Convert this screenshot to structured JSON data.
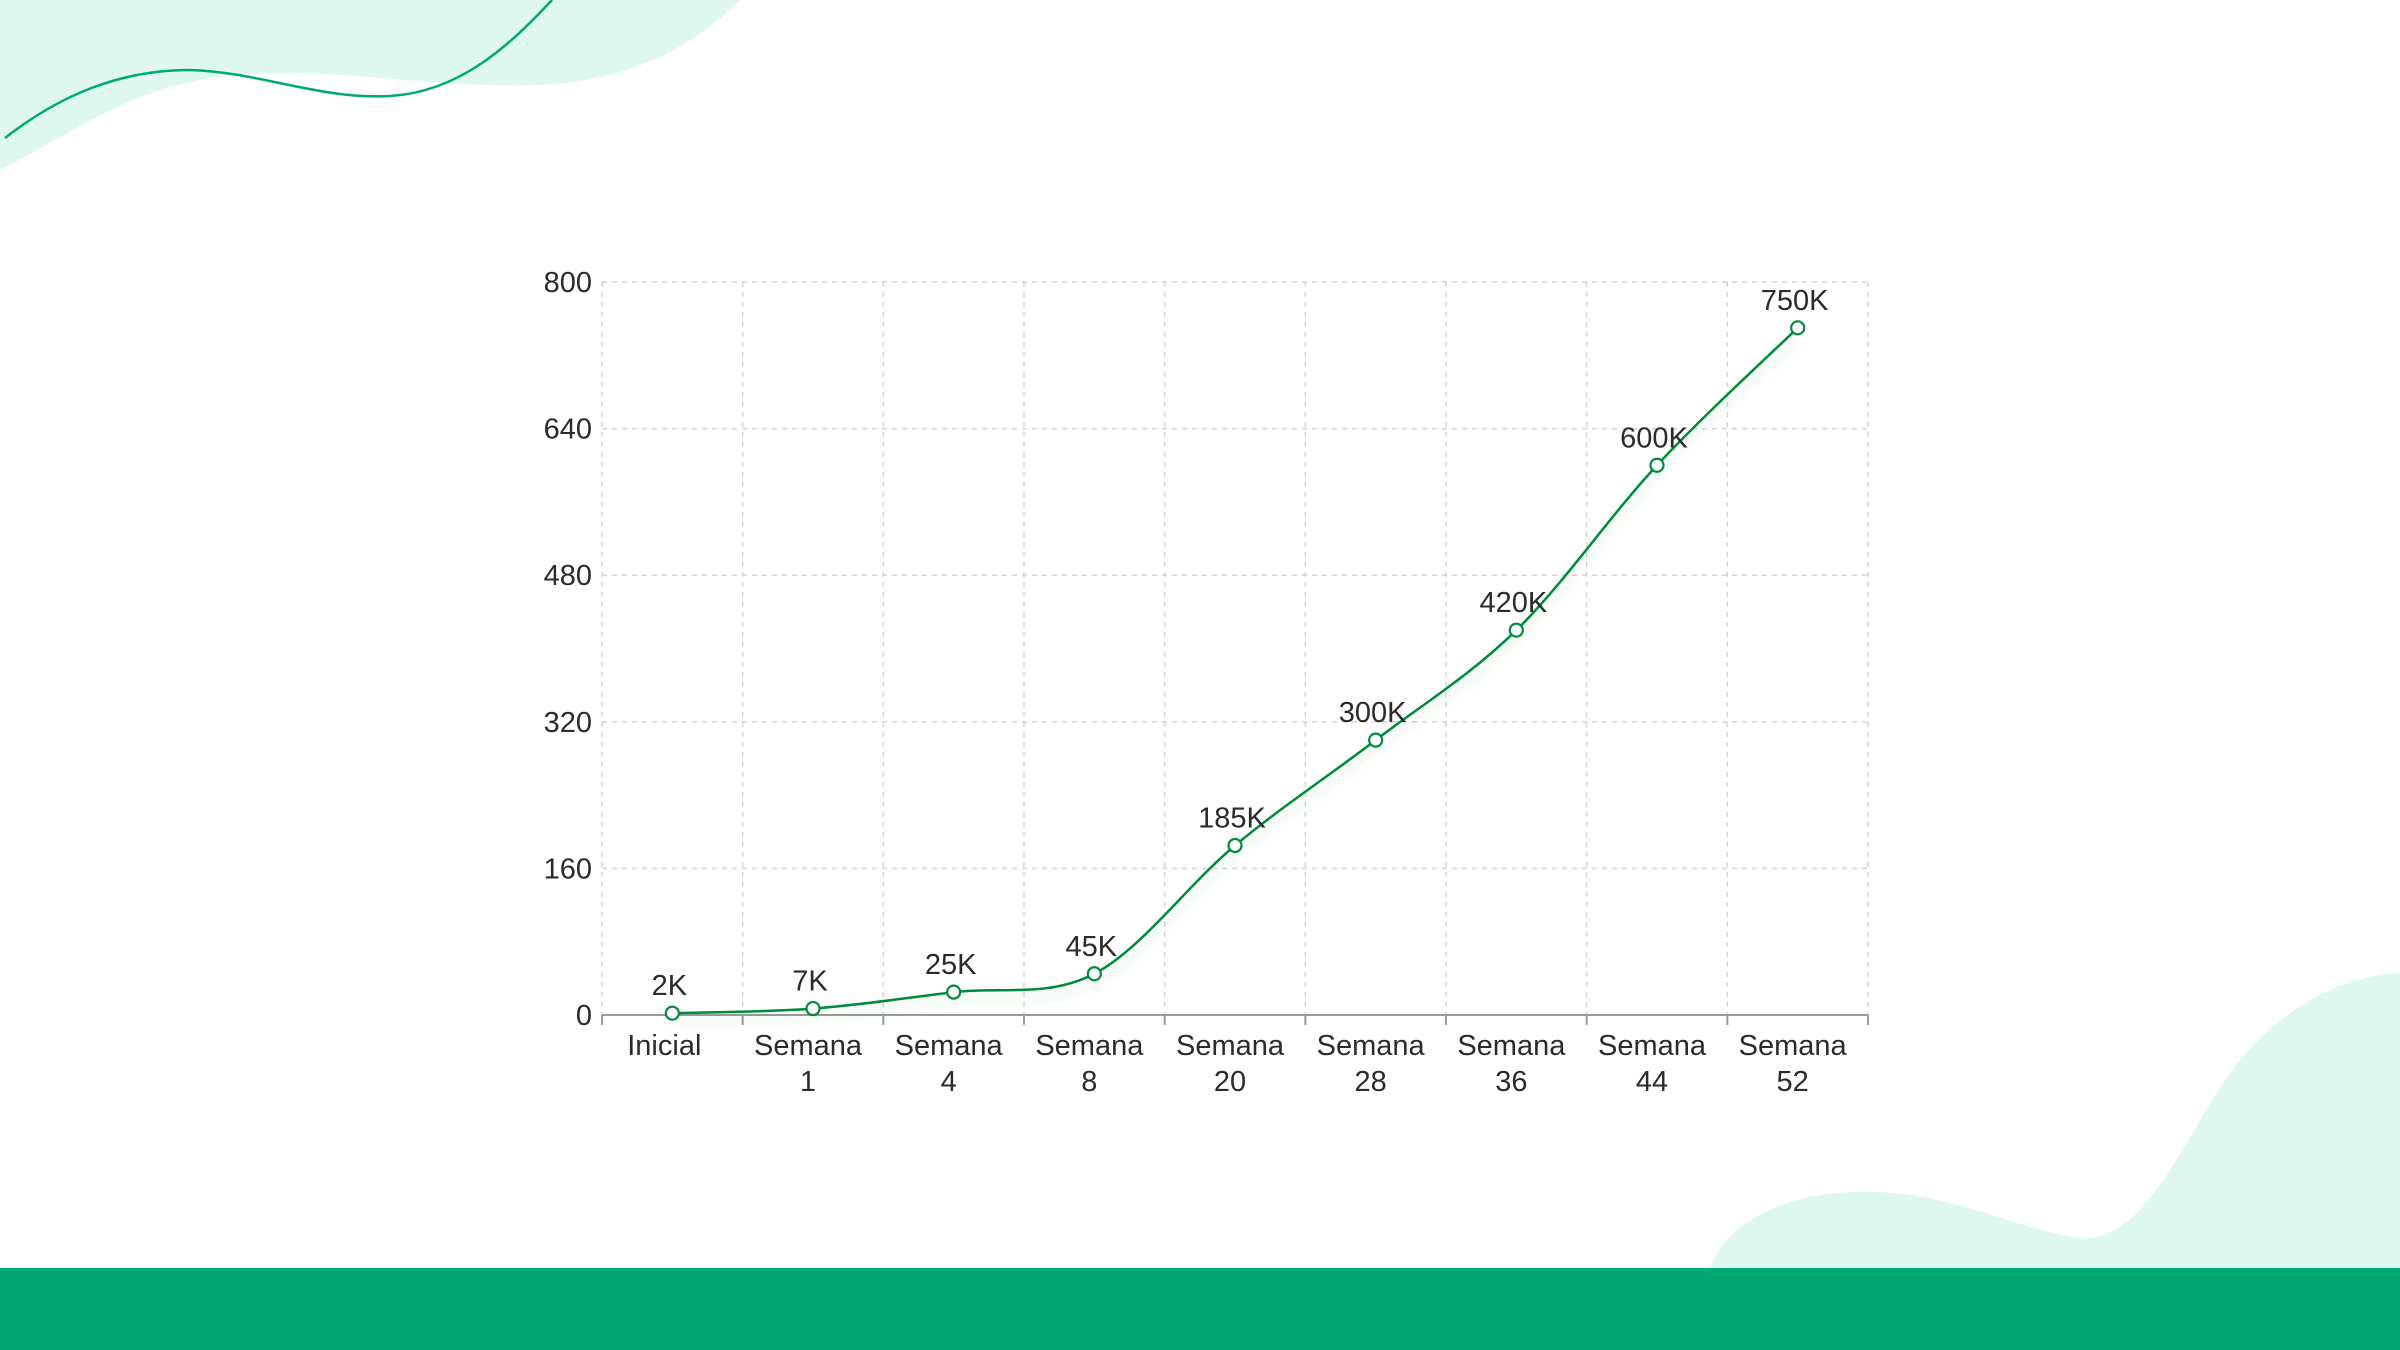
{
  "theme": {
    "accent": "#008a3a",
    "footer": "#00a874",
    "decor": "#dff8ef",
    "grid": "#d4d4d4"
  },
  "chart_data": {
    "type": "line",
    "title": "",
    "xlabel": "",
    "ylabel": "",
    "categories": [
      [
        "Inicial"
      ],
      [
        "Semana",
        "1"
      ],
      [
        "Semana",
        "4"
      ],
      [
        "Semana",
        "8"
      ],
      [
        "Semana",
        "20"
      ],
      [
        "Semana",
        "28"
      ],
      [
        "Semana",
        "36"
      ],
      [
        "Semana",
        "44"
      ],
      [
        "Semana",
        "52"
      ]
    ],
    "values": [
      2,
      7,
      25,
      45,
      185,
      300,
      420,
      600,
      750
    ],
    "data_labels": [
      "2K",
      "7K",
      "25K",
      "45K",
      "185K",
      "300K",
      "420K",
      "600K",
      "750K"
    ],
    "ylim": [
      0,
      800
    ],
    "yticks": [
      "0",
      "160",
      "320",
      "480",
      "640",
      "800"
    ],
    "grid": true,
    "smooth": true,
    "marker": "hollow-circle"
  }
}
